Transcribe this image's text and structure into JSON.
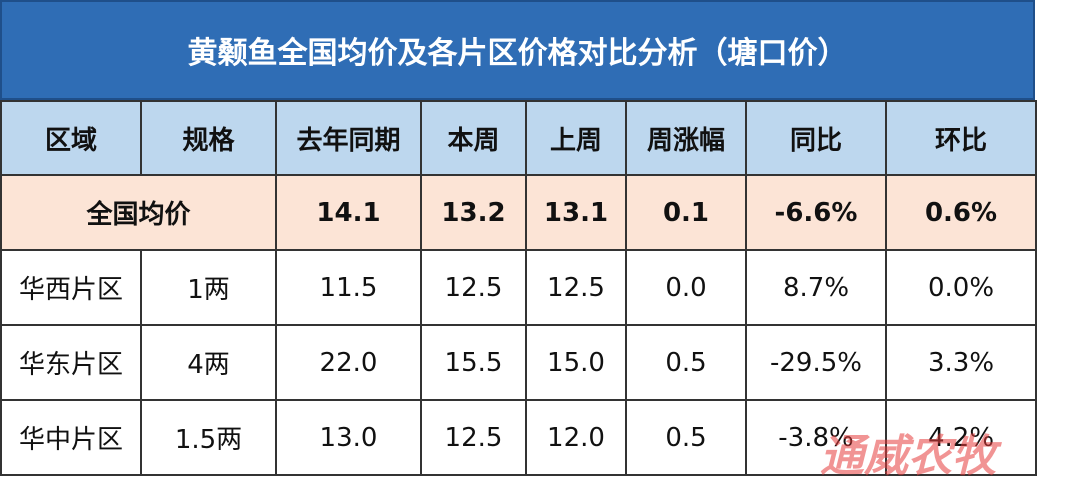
{
  "header": {
    "title": "黄颡鱼全国均价及各片区价格对比分析（塘口价）"
  },
  "table": {
    "columns": [
      "区域",
      "规格",
      "去年同期",
      "本周",
      "上周",
      "周涨幅",
      "同比",
      "环比"
    ],
    "average_row": {
      "label": "全国均价",
      "values": [
        "14.1",
        "13.2",
        "13.1",
        "0.1",
        "-6.6%",
        "0.6%"
      ]
    },
    "rows": [
      [
        "华西片区",
        "1两",
        "11.5",
        "12.5",
        "12.5",
        "0.0",
        "8.7%",
        "0.0%"
      ],
      [
        "华东片区",
        "4两",
        "22.0",
        "15.5",
        "15.0",
        "0.5",
        "-29.5%",
        "3.3%"
      ],
      [
        "华中片区",
        "1.5两",
        "13.0",
        "12.5",
        "12.0",
        "0.5",
        "-3.8%",
        "4.2%"
      ]
    ]
  },
  "watermark": "通威农牧"
}
